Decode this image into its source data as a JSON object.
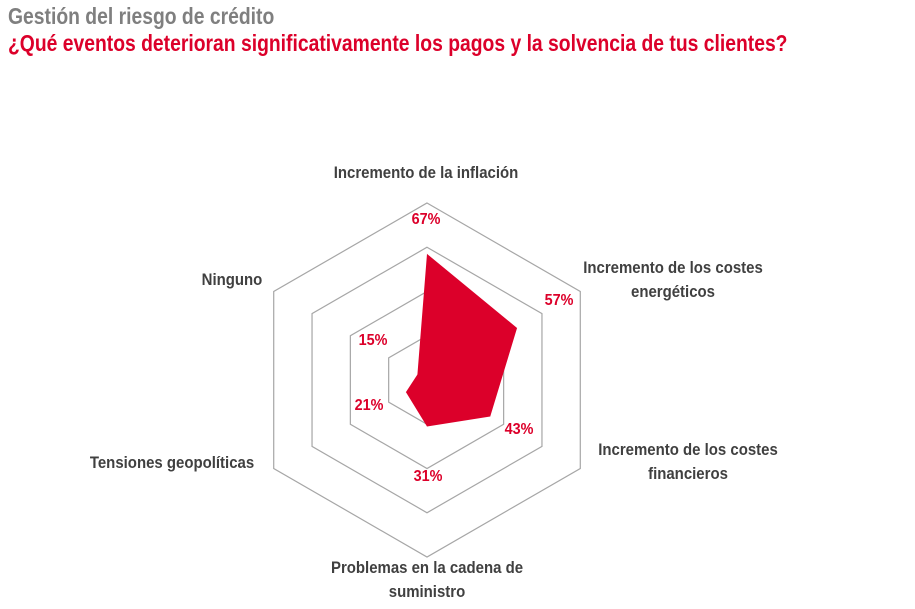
{
  "header": {
    "title": "Gestión del riesgo de crédito",
    "subtitle": "¿Qué eventos deterioran significativamente los pagos y la solvencia de tus clientes?"
  },
  "chart_data": {
    "type": "radar",
    "title": "¿Qué eventos deterioran significativamente los pagos y la solvencia de tus clientes?",
    "categories": [
      {
        "line1": "Incremento de la inflación",
        "line2": ""
      },
      {
        "line1": "Incremento de los costes",
        "line2": "energéticos"
      },
      {
        "line1": "Incremento de los costes",
        "line2": "financieros"
      },
      {
        "line1": "Problemas en la cadena de",
        "line2": "suministro"
      },
      {
        "line1": "Tensiones geopolíticas",
        "line2": ""
      },
      {
        "line1": "Ninguno",
        "line2": ""
      }
    ],
    "values": [
      67,
      57,
      43,
      31,
      21,
      15
    ],
    "value_labels": [
      "67%",
      "57%",
      "43%",
      "31%",
      "21%",
      "15%"
    ],
    "rlim": [
      10,
      90
    ],
    "rings": 4,
    "grid": true,
    "legend": "none",
    "colors": {
      "fill": "#dc002a",
      "grid": "#a6a6a6"
    }
  }
}
